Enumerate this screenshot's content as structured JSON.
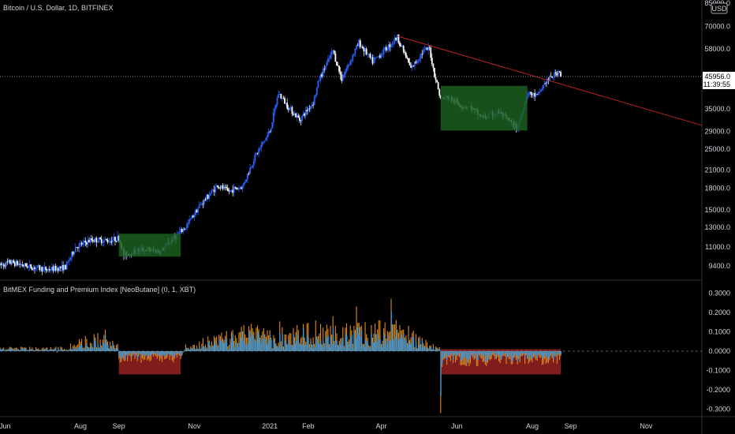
{
  "chart_data": [
    {
      "type": "candlestick",
      "title": "Bitcoin / U.S. Dollar, 1D, BITFINEX",
      "currency_badge": "USD",
      "scale": "log",
      "ylim": [
        8500,
        85000
      ],
      "y_ticks": [
        "85000.0",
        "70000.0",
        "58000.0",
        "45956.0",
        "35000.0",
        "29000.0",
        "25000.0",
        "21000.0",
        "18000.0",
        "15000.0",
        "13000.0",
        "11000.0",
        "9400.0"
      ],
      "y_tick_values": [
        85000,
        70000,
        58000,
        35000,
        29000,
        25000,
        21000,
        18000,
        15000,
        13000,
        11000,
        9400
      ],
      "last_price": "45956.0",
      "countdown": "11:39:55",
      "last_price_value": 45956,
      "x_range": [
        "2020-05-28",
        "2021-12-16"
      ],
      "x_ticks": [
        {
          "label": "Jun",
          "date": "2020-06-01"
        },
        {
          "label": "Aug",
          "date": "2020-08-01"
        },
        {
          "label": "Sep",
          "date": "2020-09-01"
        },
        {
          "label": "Nov",
          "date": "2020-11-01"
        },
        {
          "label": "2021",
          "date": "2021-01-01"
        },
        {
          "label": "Feb",
          "date": "2021-02-01"
        },
        {
          "label": "Apr",
          "date": "2021-04-01"
        },
        {
          "label": "Jun",
          "date": "2021-06-01"
        },
        {
          "label": "Aug",
          "date": "2021-08-01"
        },
        {
          "label": "Sep",
          "date": "2021-09-01"
        },
        {
          "label": "Nov",
          "date": "2021-11-01"
        }
      ],
      "price_path": [
        [
          "2020-05-28",
          9400
        ],
        [
          "2020-06-05",
          9700
        ],
        [
          "2020-06-20",
          9350
        ],
        [
          "2020-07-05",
          9100
        ],
        [
          "2020-07-20",
          9300
        ],
        [
          "2020-07-28",
          11000
        ],
        [
          "2020-08-10",
          11700
        ],
        [
          "2020-08-25",
          11600
        ],
        [
          "2020-09-01",
          11900
        ],
        [
          "2020-09-05",
          10300
        ],
        [
          "2020-09-20",
          10800
        ],
        [
          "2020-10-05",
          10600
        ],
        [
          "2020-10-12",
          11500
        ],
        [
          "2020-10-25",
          13000
        ],
        [
          "2020-11-05",
          15500
        ],
        [
          "2020-11-20",
          18500
        ],
        [
          "2020-11-28",
          17500
        ],
        [
          "2020-12-10",
          18300
        ],
        [
          "2020-12-20",
          23500
        ],
        [
          "2021-01-01",
          29000
        ],
        [
          "2021-01-08",
          40000
        ],
        [
          "2021-01-15",
          36000
        ],
        [
          "2021-01-25",
          32000
        ],
        [
          "2021-02-05",
          37000
        ],
        [
          "2021-02-10",
          45000
        ],
        [
          "2021-02-21",
          57000
        ],
        [
          "2021-02-28",
          45000
        ],
        [
          "2021-03-10",
          56000
        ],
        [
          "2021-03-14",
          61000
        ],
        [
          "2021-03-25",
          52000
        ],
        [
          "2021-04-05",
          58000
        ],
        [
          "2021-04-14",
          64000
        ],
        [
          "2021-04-25",
          49000
        ],
        [
          "2021-05-05",
          57000
        ],
        [
          "2021-05-10",
          58000
        ],
        [
          "2021-05-13",
          49000
        ],
        [
          "2021-05-19",
          38000
        ],
        [
          "2021-05-25",
          38500
        ],
        [
          "2021-06-05",
          36000
        ],
        [
          "2021-06-12",
          35500
        ],
        [
          "2021-06-22",
          32500
        ],
        [
          "2021-07-05",
          34000
        ],
        [
          "2021-07-20",
          29800
        ],
        [
          "2021-07-28",
          40000
        ],
        [
          "2021-08-05",
          39000
        ],
        [
          "2021-08-12",
          44000
        ],
        [
          "2021-08-20",
          47000
        ],
        [
          "2021-08-23",
          48500
        ],
        [
          "2021-08-24",
          45956
        ]
      ],
      "annotations": [
        {
          "type": "box",
          "color": "#1b5e20",
          "x": [
            "2020-09-01",
            "2020-10-21"
          ],
          "y": [
            10150,
            12300
          ]
        },
        {
          "type": "box",
          "color": "#1b5e20",
          "x": [
            "2021-05-19",
            "2021-07-28"
          ],
          "y": [
            29200,
            42500
          ]
        },
        {
          "type": "trendline",
          "color": "#b22222",
          "from": [
            "2021-04-14",
            64500
          ],
          "to": [
            "2021-12-16",
            30500
          ]
        }
      ],
      "candle_colors": {
        "up": "#2962ff",
        "down": "#ffffff"
      }
    },
    {
      "type": "bar",
      "title": "BitMEX Funding and Premium Index [NeoButane] (0, 1, XBT)",
      "ylim": [
        -0.33,
        0.33
      ],
      "y_ticks": [
        "0.3000",
        "0.2000",
        "0.1000",
        "0.0000",
        "-0.1000",
        "-0.2000",
        "-0.3000"
      ],
      "y_tick_values": [
        0.3,
        0.2,
        0.1,
        0,
        -0.1,
        -0.2,
        -0.3
      ],
      "series": [
        {
          "name": "Funding",
          "color": "#2196f3"
        },
        {
          "name": "Premium",
          "color": "#e08a1e"
        }
      ],
      "envelope": [
        [
          "2020-05-28",
          0.02
        ],
        [
          "2020-07-20",
          0.02
        ],
        [
          "2020-08-01",
          0.06
        ],
        [
          "2020-08-15",
          0.09
        ],
        [
          "2020-08-31",
          0.04
        ],
        [
          "2020-09-01",
          -0.05
        ],
        [
          "2020-10-21",
          -0.05
        ],
        [
          "2020-10-25",
          0.03
        ],
        [
          "2020-11-10",
          0.06
        ],
        [
          "2020-12-01",
          0.1
        ],
        [
          "2021-01-01",
          0.14
        ],
        [
          "2021-01-15",
          0.12
        ],
        [
          "2021-02-10",
          0.15
        ],
        [
          "2021-03-01",
          0.12
        ],
        [
          "2021-04-01",
          0.14
        ],
        [
          "2021-04-10",
          0.2
        ],
        [
          "2021-05-01",
          0.08
        ],
        [
          "2021-05-18",
          0.02
        ],
        [
          "2021-05-19",
          -0.07
        ],
        [
          "2021-07-28",
          -0.06
        ],
        [
          "2021-08-24",
          -0.06
        ]
      ],
      "spikes": [
        {
          "date": "2021-04-09",
          "value": 0.27
        },
        {
          "date": "2021-03-12",
          "value": 0.23
        },
        {
          "date": "2021-02-21",
          "value": 0.18
        },
        {
          "date": "2021-05-19",
          "value": -0.32
        },
        {
          "date": "2020-08-21",
          "value": 0.11
        }
      ],
      "annotations": [
        {
          "type": "box",
          "color": "#7f1d1d",
          "x": [
            "2020-09-01",
            "2020-10-21"
          ],
          "y": [
            -0.12,
            0.0
          ]
        },
        {
          "type": "box",
          "color": "#7f1d1d",
          "x": [
            "2021-05-19",
            "2021-08-24"
          ],
          "y": [
            -0.12,
            0.01
          ]
        }
      ]
    }
  ]
}
